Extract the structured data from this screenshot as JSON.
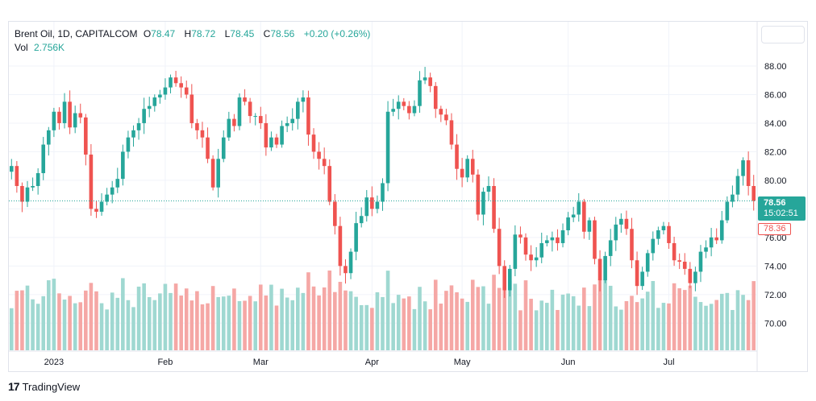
{
  "legend": {
    "symbol": "Brent Oil, 1D, CAPITALCOM",
    "o_label": "O",
    "o_value": "78.47",
    "h_label": "H",
    "h_value": "78.72",
    "l_label": "L",
    "l_value": "78.45",
    "c_label": "C",
    "c_value": "78.56",
    "change": "+0.20 (+0.26%)",
    "vol_label": "Vol",
    "vol_value": "2.756K"
  },
  "price_badge": {
    "price": "78.56",
    "countdown": "15:02:51"
  },
  "prev_close_label": "78.36",
  "branding": {
    "logo": "17",
    "text": "TradingView"
  },
  "colors": {
    "up": "#26a69a",
    "down": "#ef5350",
    "vol_up": "#9fd8d1",
    "vol_down": "#f5a7a5"
  },
  "chart_data": {
    "type": "candlestick",
    "y_ticks": [
      "88.00",
      "86.00",
      "84.00",
      "82.00",
      "80.00",
      "78.00",
      "76.00",
      "74.00",
      "72.00",
      "70.00"
    ],
    "y_tick_values": [
      88,
      86,
      84,
      82,
      80,
      78,
      76,
      74,
      72,
      70
    ],
    "ylim": [
      68.1,
      91.1
    ],
    "x_labels": [
      {
        "label": "2023",
        "index": 8
      },
      {
        "label": "Feb",
        "index": 29
      },
      {
        "label": "Mar",
        "index": 47
      },
      {
        "label": "Apr",
        "index": 68
      },
      {
        "label": "May",
        "index": 85
      },
      {
        "label": "Jun",
        "index": 105
      },
      {
        "label": "Jul",
        "index": 124
      }
    ],
    "current_price": 78.56,
    "prev_close": 78.36,
    "closes": [
      81.0,
      79.6,
      78.5,
      79.5,
      79.6,
      80.5,
      82.5,
      83.5,
      84.8,
      84.0,
      85.5,
      83.7,
      84.7,
      84.4,
      81.8,
      78.0,
      77.8,
      78.5,
      79.0,
      79.5,
      80.1,
      82.0,
      83.0,
      83.5,
      84.0,
      85.0,
      85.2,
      85.8,
      86.0,
      86.5,
      87.2,
      86.8,
      86.5,
      86.0,
      84.0,
      83.5,
      83.0,
      81.5,
      79.5,
      81.5,
      83.0,
      84.3,
      83.8,
      85.8,
      85.5,
      84.5,
      84.5,
      84.0,
      82.3,
      83.0,
      82.5,
      83.8,
      84.0,
      84.3,
      85.5,
      85.8,
      83.2,
      82.0,
      81.5,
      81.0,
      78.5,
      76.8,
      74.0,
      73.5,
      75.0,
      77.0,
      77.5,
      78.8,
      78.0,
      78.5,
      79.8,
      84.8,
      85.0,
      85.5,
      85.2,
      84.7,
      85.2,
      87.0,
      87.2,
      86.6,
      85.0,
      84.6,
      84.2,
      82.5,
      80.8,
      80.2,
      81.5,
      80.4,
      77.6,
      79.2,
      79.6,
      76.6,
      74.0,
      72.3,
      73.8,
      76.2,
      76.0,
      74.8,
      74.4,
      74.6,
      75.6,
      75.8,
      76.0,
      75.6,
      76.5,
      77.4,
      77.6,
      78.5,
      76.4,
      77.2,
      74.5,
      73.0,
      74.7,
      75.8,
      76.9,
      77.3,
      76.6,
      74.4,
      72.6,
      73.6,
      74.9,
      75.9,
      76.5,
      76.8,
      75.6,
      74.4,
      74.3,
      73.8,
      72.8,
      73.6,
      75.0,
      75.3,
      76.0,
      75.8,
      77.2,
      78.5,
      79.0,
      80.3,
      81.4,
      79.6,
      78.56
    ]
  }
}
